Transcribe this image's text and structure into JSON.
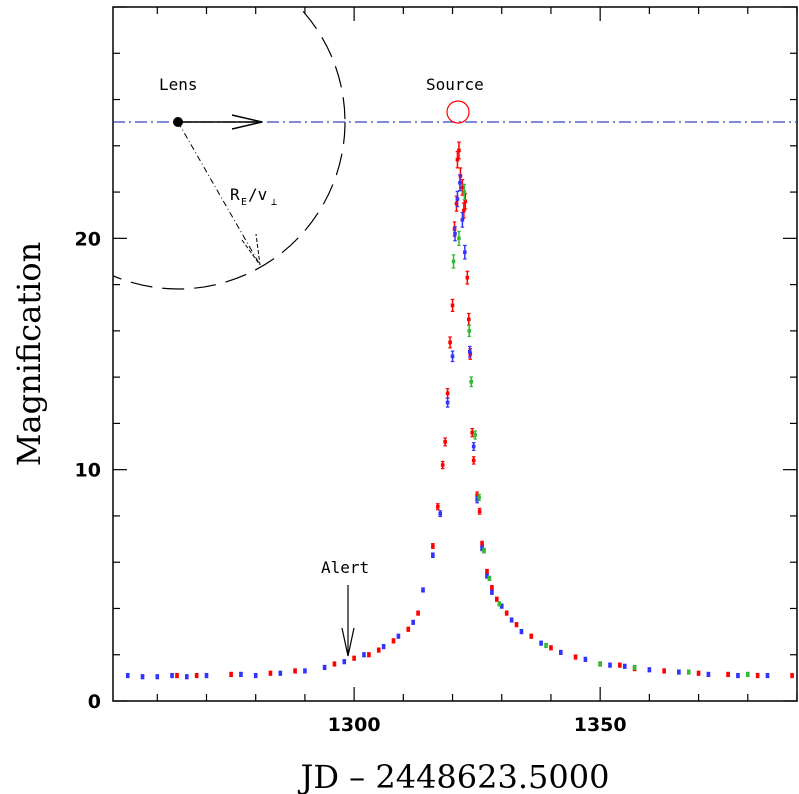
{
  "chart_data": {
    "type": "scatter",
    "xlabel": "JD – 2448623.5000",
    "ylabel": "Magnification",
    "xlim": [
      1251,
      1390
    ],
    "ylim": [
      0,
      30
    ],
    "x_ticks": [
      1300,
      1350
    ],
    "y_ticks": [
      0,
      10,
      20
    ],
    "grid": false,
    "colors": {
      "red": "#ff0000",
      "blue": "#3333ff",
      "green": "#33bb33",
      "line": "#0000cc",
      "source": "#ff0000"
    },
    "series": [
      {
        "color": "red",
        "points": [
          [
            1264,
            1.1
          ],
          [
            1268,
            1.1
          ],
          [
            1275,
            1.15
          ],
          [
            1283,
            1.2
          ],
          [
            1288,
            1.3
          ],
          [
            1296,
            1.6
          ],
          [
            1300,
            1.85
          ],
          [
            1303,
            2.0
          ],
          [
            1305,
            2.2
          ],
          [
            1308,
            2.6
          ],
          [
            1311,
            3.1
          ],
          [
            1313,
            3.8
          ],
          [
            1316,
            6.7
          ],
          [
            1317,
            8.4
          ],
          [
            1318,
            10.2
          ],
          [
            1318.5,
            11.2
          ],
          [
            1319,
            13.3
          ],
          [
            1319.5,
            15.5
          ],
          [
            1320,
            17.1
          ],
          [
            1320.4,
            20.4
          ],
          [
            1320.8,
            21.5
          ],
          [
            1321,
            23.4
          ],
          [
            1321.3,
            23.8
          ],
          [
            1321.6,
            22.7
          ],
          [
            1322,
            22.2
          ],
          [
            1322.3,
            21.2
          ],
          [
            1322.6,
            21.6
          ],
          [
            1323,
            18.3
          ],
          [
            1323.3,
            16.5
          ],
          [
            1323.6,
            15.0
          ],
          [
            1324,
            11.6
          ],
          [
            1324.3,
            10.4
          ],
          [
            1325,
            8.9
          ],
          [
            1325.5,
            8.2
          ],
          [
            1326,
            6.8
          ],
          [
            1327,
            5.6
          ],
          [
            1328,
            4.9
          ],
          [
            1329,
            4.4
          ],
          [
            1331,
            3.8
          ],
          [
            1333,
            3.3
          ],
          [
            1336,
            2.8
          ],
          [
            1340,
            2.3
          ],
          [
            1345,
            1.9
          ],
          [
            1350,
            1.6
          ],
          [
            1354,
            1.55
          ],
          [
            1357,
            1.4
          ],
          [
            1363,
            1.3
          ],
          [
            1370,
            1.2
          ],
          [
            1376,
            1.15
          ],
          [
            1382,
            1.1
          ],
          [
            1389,
            1.1
          ]
        ]
      },
      {
        "color": "blue",
        "points": [
          [
            1254,
            1.1
          ],
          [
            1257,
            1.05
          ],
          [
            1260,
            1.05
          ],
          [
            1263,
            1.1
          ],
          [
            1266,
            1.05
          ],
          [
            1270,
            1.1
          ],
          [
            1277,
            1.15
          ],
          [
            1280,
            1.1
          ],
          [
            1285,
            1.2
          ],
          [
            1290,
            1.3
          ],
          [
            1294,
            1.45
          ],
          [
            1298,
            1.7
          ],
          [
            1302,
            2.0
          ],
          [
            1306,
            2.35
          ],
          [
            1309,
            2.8
          ],
          [
            1312,
            3.4
          ],
          [
            1314,
            4.8
          ],
          [
            1316,
            6.3
          ],
          [
            1317.5,
            8.1
          ],
          [
            1319,
            12.9
          ],
          [
            1320,
            14.9
          ],
          [
            1320.5,
            20.2
          ],
          [
            1321,
            21.7
          ],
          [
            1321.5,
            22.4
          ],
          [
            1322,
            20.8
          ],
          [
            1322.5,
            19.4
          ],
          [
            1323.5,
            15.1
          ],
          [
            1324.3,
            11.0
          ],
          [
            1325,
            8.7
          ],
          [
            1326,
            6.6
          ],
          [
            1327,
            5.4
          ],
          [
            1328,
            4.7
          ],
          [
            1330,
            4.1
          ],
          [
            1332,
            3.5
          ],
          [
            1334,
            3.0
          ],
          [
            1338,
            2.5
          ],
          [
            1342,
            2.1
          ],
          [
            1347,
            1.8
          ],
          [
            1352,
            1.55
          ],
          [
            1355,
            1.5
          ],
          [
            1360,
            1.35
          ],
          [
            1366,
            1.25
          ],
          [
            1372,
            1.15
          ],
          [
            1378,
            1.1
          ],
          [
            1384,
            1.1
          ]
        ]
      },
      {
        "color": "green",
        "points": [
          [
            1320.2,
            19.0
          ],
          [
            1321.3,
            20.0
          ],
          [
            1322.4,
            22.0
          ],
          [
            1323.4,
            16.0
          ],
          [
            1323.8,
            13.8
          ],
          [
            1324.6,
            11.5
          ],
          [
            1325.4,
            8.8
          ],
          [
            1326.4,
            6.5
          ],
          [
            1327.5,
            5.3
          ],
          [
            1329.5,
            4.2
          ],
          [
            1339,
            2.4
          ],
          [
            1350,
            1.6
          ],
          [
            1357,
            1.45
          ],
          [
            1368,
            1.25
          ],
          [
            1380,
            1.15
          ]
        ]
      }
    ],
    "annotations": {
      "lens": "Lens",
      "source": "Source",
      "alert": "Alert",
      "radius_main": "R",
      "radius_sub_e": "E",
      "radius_slash_v": "/v",
      "radius_perp": "⊥"
    }
  }
}
